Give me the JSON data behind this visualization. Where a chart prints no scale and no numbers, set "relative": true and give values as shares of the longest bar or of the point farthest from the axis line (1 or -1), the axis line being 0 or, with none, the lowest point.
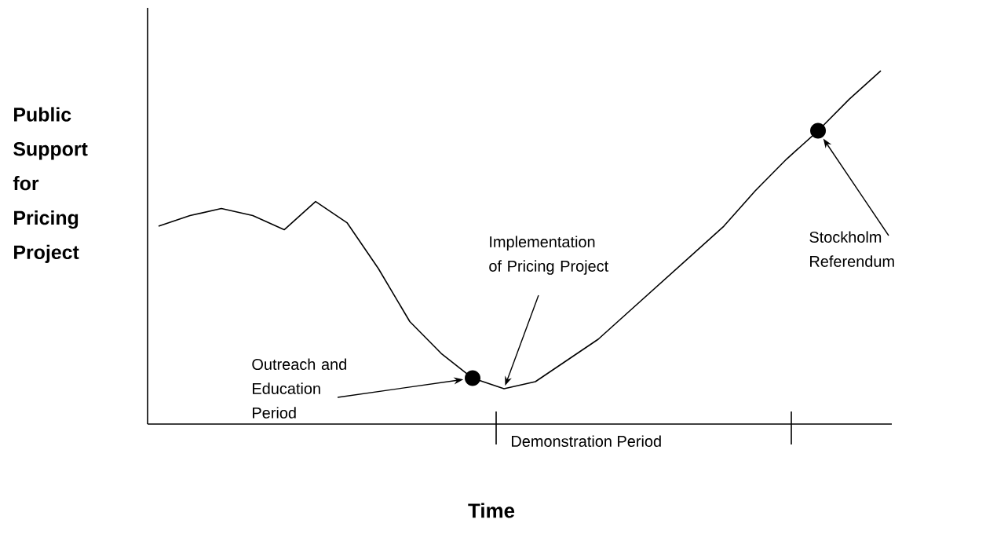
{
  "chart_data": {
    "type": "line",
    "relative": true,
    "xlabel": "Time",
    "ylabel": "Public Support for Pricing Project",
    "tick_labels": false,
    "categories": [
      null,
      null,
      null,
      null,
      null,
      null,
      null,
      null,
      null,
      null,
      null,
      null,
      null,
      null,
      null,
      null,
      null,
      null,
      null,
      null,
      null,
      null,
      null,
      null
    ],
    "series": [
      {
        "color": "#000000",
        "values": [
          0.56,
          0.59,
          0.61,
          0.59,
          0.55,
          0.63,
          0.57,
          0.44,
          0.29,
          0.2,
          0.13,
          0.1,
          0.12,
          0.18,
          0.24,
          0.32,
          0.4,
          0.48,
          0.56,
          0.66,
          0.75,
          0.83,
          0.92,
          1
        ]
      }
    ],
    "annotations": [
      "Outreach and Education Period",
      "Implementation of Pricing Project",
      "Stockholm Referendum",
      "Demonstration Period"
    ]
  }
}
